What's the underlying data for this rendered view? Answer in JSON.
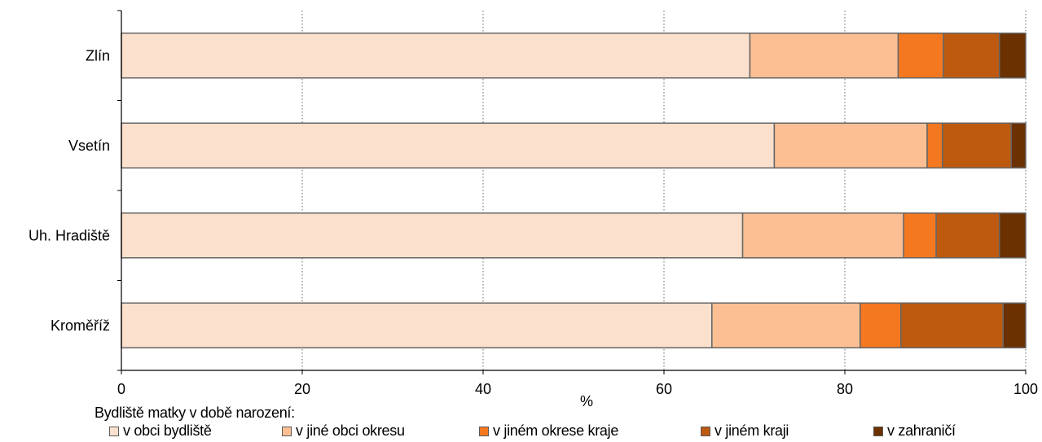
{
  "chart_data": {
    "type": "bar",
    "orientation": "horizontal",
    "stacked": true,
    "categories": [
      "Zlín",
      "Vsetín",
      "Uh. Hradiště",
      "Kroměříž"
    ],
    "series": [
      {
        "name": "v obci bydliště",
        "color": "#fbe1cd",
        "values": [
          69.5,
          72.2,
          68.7,
          65.3
        ]
      },
      {
        "name": "v jiné obci okresu",
        "color": "#fbbf93",
        "values": [
          16.4,
          16.9,
          17.8,
          16.4
        ]
      },
      {
        "name": "v jiném okrese kraje",
        "color": "#f47820",
        "values": [
          5.0,
          1.7,
          3.6,
          4.5
        ]
      },
      {
        "name": "v jiném kraji",
        "color": "#bd5a10",
        "values": [
          6.2,
          7.6,
          7.0,
          11.3
        ]
      },
      {
        "name": "v zahraničí",
        "color": "#6b3100",
        "values": [
          2.9,
          1.6,
          2.9,
          2.5
        ]
      }
    ],
    "xlabel": "%",
    "xlim": [
      0,
      100
    ],
    "xticks": [
      0,
      20,
      40,
      60,
      80,
      100
    ],
    "grid": "vertical dotted",
    "legend_title": "Bydliště matky v době narození:",
    "legend_position": "bottom"
  }
}
